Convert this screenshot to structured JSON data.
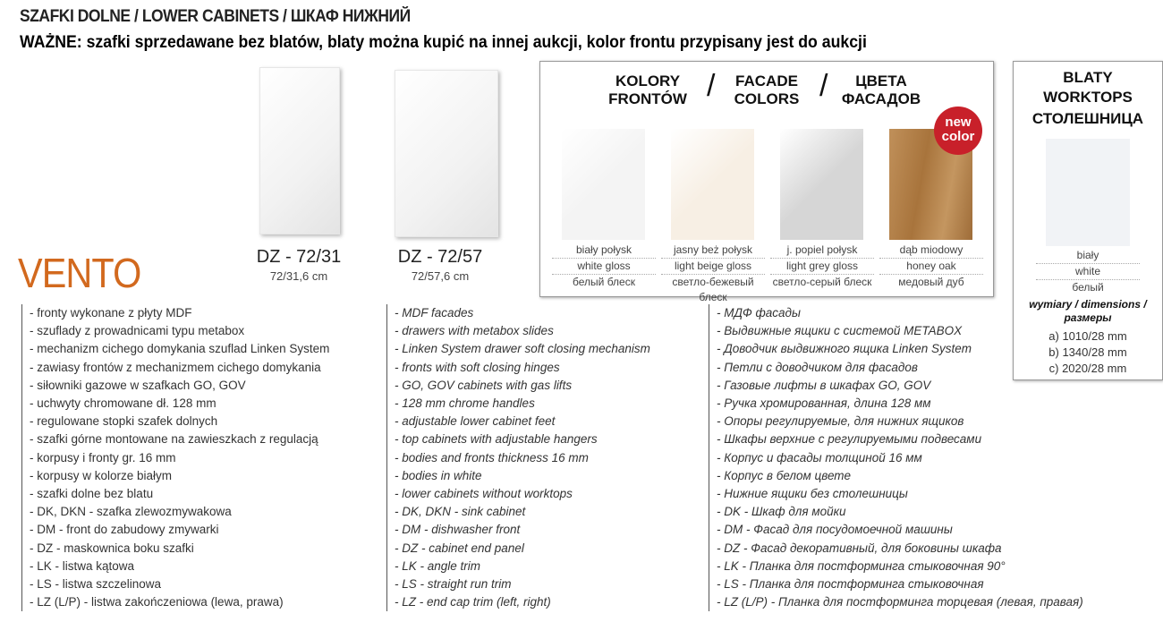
{
  "header": {
    "title": "SZAFKI DOLNE / LOWER CABINETS / ШКАФ НИЖНИЙ",
    "warning": "WAŻNE:  szafki sprzedawane bez blatów, blaty można kupić na innej aukcji, kolor frontu przypisany jest do aukcji"
  },
  "brand": "VENTO",
  "products": [
    {
      "name": "DZ - 72/31",
      "size": "72/31,6 cm"
    },
    {
      "name": "DZ - 72/57",
      "size": "72/57,6 cm"
    }
  ],
  "colors": {
    "heading": [
      "KOLORY FRONTÓW",
      "FACADE COLORS",
      "ЦВЕТА ФАСАДОВ"
    ],
    "badge": "new color",
    "swatches": [
      {
        "pl": "biały połysk",
        "en": "white gloss",
        "ru": "белый блеск",
        "color": "#f4f4f4"
      },
      {
        "pl": "jasny beż połysk",
        "en": "light beige gloss",
        "ru": "светло-бежевый блеск",
        "color": "#f7efe4"
      },
      {
        "pl": "j. popiel połysk",
        "en": "light grey gloss",
        "ru": "светло-серый блеск",
        "color": "#d6d6d6"
      },
      {
        "pl": "dąb miodowy",
        "en": "honey oak",
        "ru": "медовый дуб",
        "color": "#b8864a"
      }
    ]
  },
  "worktops": {
    "heading": [
      "BLATY",
      "WORKTOPS",
      "СТОЛЕШНИЦА"
    ],
    "pl": "biały",
    "en": "white",
    "ru": "белый",
    "dimensions_label": "wymiary / dimensions / размеры",
    "dimensions": [
      "a) 1010/28 mm",
      "b) 1340/28 mm",
      "c)  2020/28 mm"
    ]
  },
  "features": {
    "pl": [
      "- fronty wykonane z płyty MDF",
      "- szuflady z prowadnicami typu metabox",
      "- mechanizm cichego domykania szuflad Linken System",
      "- zawiasy frontów z mechanizmem cichego domykania",
      "- siłowniki gazowe w szafkach GO, GOV",
      "- uchwyty chromowane dł. 128 mm",
      "- regulowane stopki szafek dolnych",
      "- szafki górne montowane na zawieszkach z regulacją",
      "- korpusy i fronty gr. 16 mm",
      "- korpusy w kolorze białym",
      "- szafki dolne bez blatu",
      "- DK, DKN - szafka zlewozmywakowa",
      "- DM - front do zabudowy zmywarki",
      "- DZ - maskownica boku szafki",
      "- LK - listwa kątowa",
      "- LS - listwa szczelinowa",
      "- LZ (L/P) - listwa zakończeniowa (lewa, prawa)"
    ],
    "en": [
      "- MDF facades",
      "- drawers with metabox slides",
      "- Linken System drawer soft closing mechanism",
      "- fronts with soft closing hinges",
      "- GO, GOV cabinets with gas lifts",
      "- 128 mm chrome handles",
      "- adjustable lower cabinet feet",
      "- top cabinets with adjustable hangers",
      "- bodies and fronts thickness 16 mm",
      "- bodies in white",
      "- lower cabinets without worktops",
      "- DK, DKN - sink cabinet",
      "- DM - dishwasher front",
      "- DZ - cabinet end panel",
      "- LK - angle trim",
      "- LS - straight run trim",
      "- LZ - end cap trim (left, right)"
    ],
    "ru": [
      "- МДФ фасады",
      "- Выдвижные ящики с системой METABOX",
      "- Доводчик выдвижного ящика Linken System",
      "- Петли с доводчиком для фасадов",
      "- Газовые лифты в шкафах GO, GOV",
      "- Ручка хромированная, длина 128 мм",
      "- Опоры регулируемые, для нижних ящиков",
      "- Шкафы верхние с регулируемыми подвесами",
      "- Корпус и фасады толщиной 16 мм",
      "- Корпус в белом цвете",
      "- Нижние ящики без столешницы",
      "- DK - Шкаф для мойки",
      "- DM - Фасад для посудомоечной машины",
      "- DZ - Фасад декоративный, для боковины шкафа",
      "- LK - Планка для постформинга стыковочная  90°",
      "- LS - Планка для постформинга стыковочная",
      "- LZ (L/P) - Планка для постформинга торцевая (левая, правая)"
    ]
  }
}
